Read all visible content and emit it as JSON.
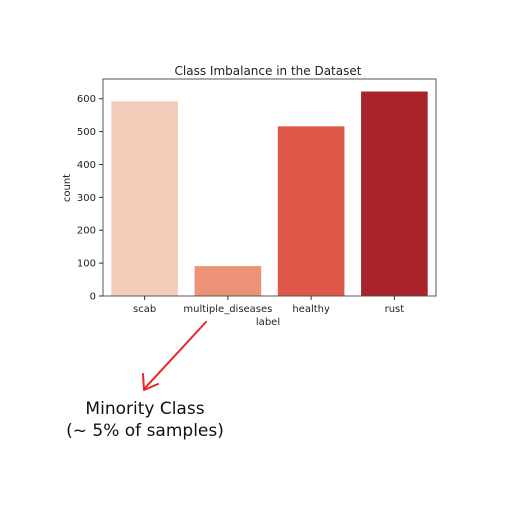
{
  "chart_data": {
    "type": "bar",
    "title": "Class Imbalance in the Dataset",
    "xlabel": "label",
    "ylabel": "count",
    "categories": [
      "scab",
      "multiple_diseases",
      "healthy",
      "rust"
    ],
    "values": [
      592,
      91,
      516,
      622
    ],
    "colors": [
      "#f5cbb9",
      "#ec9377",
      "#dd5647",
      "#a8242a"
    ],
    "ylim": [
      0,
      660
    ],
    "yticks": [
      0,
      100,
      200,
      300,
      400,
      500,
      600
    ],
    "grid": false
  },
  "annotation": {
    "line1": "Minority Class",
    "line2": "(~ 5% of samples)",
    "arrow_color": "#e82424"
  }
}
